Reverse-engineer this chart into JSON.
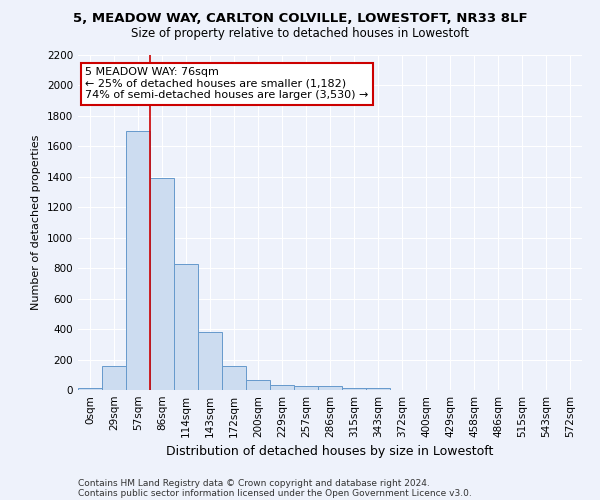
{
  "title1": "5, MEADOW WAY, CARLTON COLVILLE, LOWESTOFT, NR33 8LF",
  "title2": "Size of property relative to detached houses in Lowestoft",
  "xlabel": "Distribution of detached houses by size in Lowestoft",
  "ylabel": "Number of detached properties",
  "footer1": "Contains HM Land Registry data © Crown copyright and database right 2024.",
  "footer2": "Contains public sector information licensed under the Open Government Licence v3.0.",
  "bar_labels": [
    "0sqm",
    "29sqm",
    "57sqm",
    "86sqm",
    "114sqm",
    "143sqm",
    "172sqm",
    "200sqm",
    "229sqm",
    "257sqm",
    "286sqm",
    "315sqm",
    "343sqm",
    "372sqm",
    "400sqm",
    "429sqm",
    "458sqm",
    "486sqm",
    "515sqm",
    "543sqm",
    "572sqm"
  ],
  "bar_values": [
    15,
    155,
    1700,
    1390,
    830,
    380,
    160,
    65,
    35,
    25,
    25,
    15,
    10,
    0,
    0,
    0,
    0,
    0,
    0,
    0,
    0
  ],
  "bar_color": "#ccdcf0",
  "bar_edge_color": "#6699cc",
  "ylim": [
    0,
    2200
  ],
  "yticks": [
    0,
    200,
    400,
    600,
    800,
    1000,
    1200,
    1400,
    1600,
    1800,
    2000,
    2200
  ],
  "property_line_x": 2.5,
  "annotation_text": "5 MEADOW WAY: 76sqm\n← 25% of detached houses are smaller (1,182)\n74% of semi-detached houses are larger (3,530) →",
  "annotation_box_color": "#ffffff",
  "annotation_border_color": "#cc0000",
  "vline_color": "#cc0000",
  "background_color": "#eef2fb",
  "grid_color": "#ffffff",
  "title1_fontsize": 9.5,
  "title2_fontsize": 8.5,
  "ylabel_fontsize": 8,
  "xlabel_fontsize": 9,
  "tick_fontsize": 7.5,
  "annot_fontsize": 8,
  "footer_fontsize": 6.5
}
